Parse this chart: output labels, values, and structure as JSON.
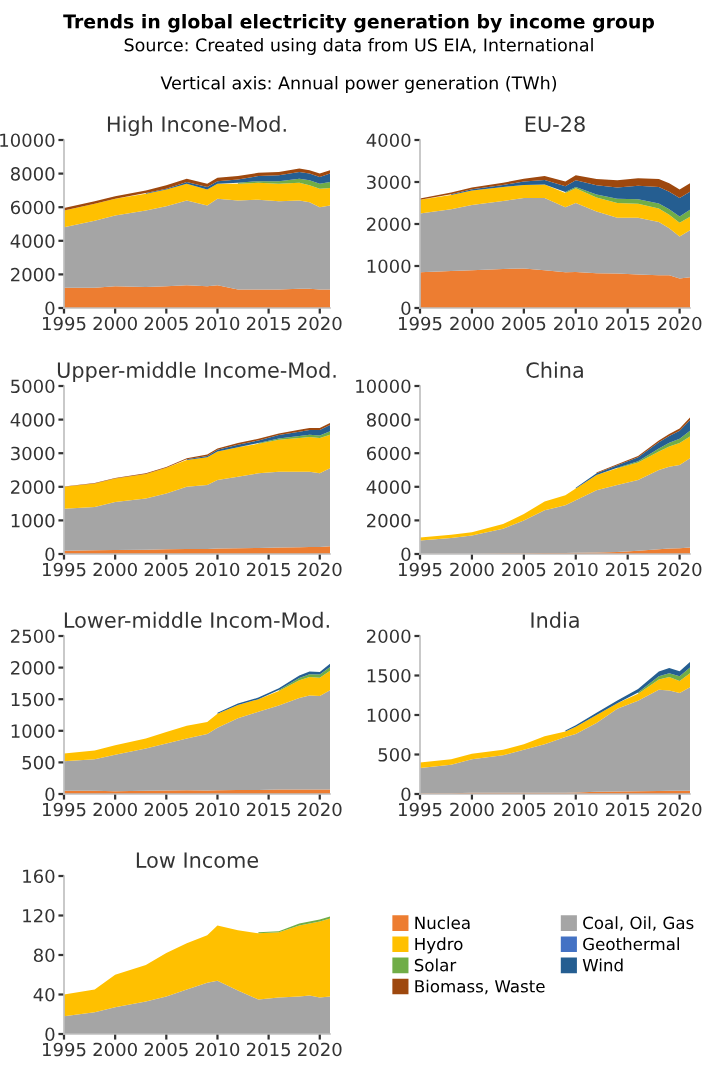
{
  "chart_data": [
    {
      "type": "area",
      "stacked": true,
      "title": "High Incone-Mod.",
      "annotations": [
        "Trends in global electricity generation by income group",
        "Source: Created using data from US EIA, International",
        "Vertical axis: Annual power generation (TWh)"
      ],
      "x": [
        1995,
        1998,
        2000,
        2003,
        2005,
        2007,
        2009,
        2010,
        2012,
        2014,
        2016,
        2018,
        2019,
        2020,
        2021
      ],
      "xlim": [
        1995,
        2021
      ],
      "xticks": [
        1995,
        2000,
        2005,
        2010,
        2015,
        2020
      ],
      "ylim": [
        0,
        10000
      ],
      "yticks": [
        0,
        2000,
        4000,
        6000,
        8000,
        10000
      ],
      "series": [
        {
          "color": "#ed7d31",
          "values": [
            1200,
            1200,
            1300,
            1250,
            1300,
            1350,
            1300,
            1350,
            1100,
            1100,
            1100,
            1150,
            1150,
            1100,
            1100
          ]
        },
        {
          "color": "#a5a5a5",
          "values": [
            3600,
            4000,
            4200,
            4550,
            4750,
            5050,
            4800,
            5150,
            5300,
            5350,
            5250,
            5250,
            5150,
            4900,
            5000
          ]
        },
        {
          "color": "#ffc000",
          "values": [
            1000,
            1000,
            1000,
            1000,
            1000,
            1000,
            950,
            900,
            1000,
            1000,
            1050,
            1050,
            1000,
            1100,
            1050
          ]
        },
        {
          "color": "#4472c4",
          "values": [
            null,
            null,
            null,
            null,
            null,
            null,
            null,
            null,
            null,
            null,
            null,
            null,
            null,
            null,
            null
          ]
        },
        {
          "color": "#70ad47",
          "values": [
            null,
            null,
            null,
            null,
            null,
            null,
            null,
            null,
            50,
            100,
            150,
            250,
            300,
            300,
            350
          ]
        },
        {
          "color": "#255e91",
          "values": [
            null,
            null,
            null,
            50,
            50,
            100,
            150,
            150,
            200,
            300,
            350,
            400,
            400,
            400,
            500
          ]
        },
        {
          "color": "#9e480e",
          "values": [
            150,
            150,
            150,
            150,
            200,
            200,
            200,
            200,
            200,
            200,
            200,
            200,
            200,
            200,
            200
          ]
        }
      ]
    },
    {
      "type": "area",
      "stacked": true,
      "title": "EU-28",
      "x": [
        1995,
        1998,
        2000,
        2003,
        2005,
        2007,
        2009,
        2010,
        2012,
        2014,
        2016,
        2018,
        2019,
        2020,
        2021
      ],
      "xlim": [
        1995,
        2021
      ],
      "xticks": [
        1995,
        2000,
        2005,
        2010,
        2015,
        2020
      ],
      "ylim": [
        0,
        4000
      ],
      "yticks": [
        0,
        1000,
        2000,
        3000,
        4000
      ],
      "series": [
        {
          "color": "#ed7d31",
          "values": [
            850,
            880,
            900,
            930,
            940,
            900,
            850,
            860,
            830,
            820,
            800,
            780,
            780,
            700,
            730
          ]
        },
        {
          "color": "#a5a5a5",
          "values": [
            1400,
            1470,
            1550,
            1620,
            1680,
            1720,
            1550,
            1640,
            1470,
            1330,
            1350,
            1270,
            1120,
            1000,
            1120
          ]
        },
        {
          "color": "#ffc000",
          "values": [
            330,
            340,
            350,
            330,
            310,
            320,
            340,
            350,
            330,
            350,
            330,
            320,
            320,
            330,
            320
          ]
        },
        {
          "color": "#4472c4",
          "values": [
            null,
            null,
            null,
            null,
            null,
            null,
            null,
            null,
            null,
            null,
            null,
            null,
            null,
            null,
            null
          ]
        },
        {
          "color": "#70ad47",
          "values": [
            null,
            null,
            null,
            null,
            null,
            null,
            20,
            30,
            70,
            100,
            110,
            120,
            130,
            150,
            170
          ]
        },
        {
          "color": "#255e91",
          "values": [
            null,
            20,
            30,
            50,
            80,
            110,
            140,
            160,
            220,
            270,
            320,
            390,
            420,
            440,
            430
          ]
        },
        {
          "color": "#9e480e",
          "values": [
            30,
            40,
            40,
            50,
            70,
            90,
            110,
            120,
            150,
            170,
            180,
            190,
            200,
            200,
            200
          ]
        }
      ]
    },
    {
      "type": "area",
      "stacked": true,
      "title": "Upper-middle Income-Mod.",
      "x": [
        1995,
        1998,
        2000,
        2003,
        2005,
        2007,
        2009,
        2010,
        2012,
        2014,
        2016,
        2018,
        2019,
        2020,
        2021
      ],
      "xlim": [
        1995,
        2021
      ],
      "xticks": [
        1995,
        2000,
        2005,
        2010,
        2015,
        2020
      ],
      "ylim": [
        0,
        5000
      ],
      "yticks": [
        0,
        1000,
        2000,
        3000,
        4000,
        5000
      ],
      "series": [
        {
          "color": "#ed7d31",
          "values": [
            100,
            110,
            120,
            130,
            140,
            150,
            150,
            160,
            170,
            180,
            190,
            200,
            210,
            210,
            230
          ]
        },
        {
          "color": "#a5a5a5",
          "values": [
            1250,
            1290,
            1430,
            1520,
            1660,
            1850,
            1900,
            2040,
            2130,
            2220,
            2260,
            2250,
            2240,
            2190,
            2320
          ]
        },
        {
          "color": "#ffc000",
          "values": [
            650,
            700,
            700,
            730,
            770,
            800,
            830,
            850,
            880,
            880,
            950,
            1000,
            1030,
            1050,
            1000
          ]
        },
        {
          "color": "#4472c4",
          "values": [
            null,
            null,
            null,
            null,
            null,
            null,
            null,
            null,
            null,
            null,
            null,
            null,
            null,
            null,
            null
          ]
        },
        {
          "color": "#70ad47",
          "values": [
            null,
            null,
            null,
            null,
            null,
            null,
            null,
            null,
            null,
            20,
            40,
            60,
            70,
            80,
            100
          ]
        },
        {
          "color": "#255e91",
          "values": [
            null,
            null,
            null,
            null,
            null,
            20,
            40,
            50,
            70,
            80,
            100,
            130,
            140,
            160,
            190
          ]
        },
        {
          "color": "#9e480e",
          "values": [
            10,
            10,
            15,
            20,
            20,
            30,
            40,
            40,
            50,
            50,
            50,
            60,
            60,
            60,
            60
          ]
        }
      ]
    },
    {
      "type": "area",
      "stacked": true,
      "title": "China",
      "x": [
        1995,
        1998,
        2000,
        2003,
        2005,
        2007,
        2009,
        2010,
        2012,
        2014,
        2016,
        2018,
        2019,
        2020,
        2021
      ],
      "xlim": [
        1995,
        2021
      ],
      "xticks": [
        1995,
        2000,
        2005,
        2010,
        2015,
        2020
      ],
      "ylim": [
        0,
        10000
      ],
      "yticks": [
        0,
        2000,
        4000,
        6000,
        8000,
        10000
      ],
      "series": [
        {
          "color": "#ed7d31",
          "values": [
            10,
            15,
            15,
            40,
            50,
            60,
            65,
            70,
            90,
            120,
            200,
            280,
            330,
            340,
            380
          ]
        },
        {
          "color": "#a5a5a5",
          "values": [
            790,
            935,
            1085,
            1460,
            1950,
            2540,
            2835,
            3130,
            3710,
            3980,
            4200,
            4720,
            4870,
            4960,
            5320
          ]
        },
        {
          "color": "#ffc000",
          "values": [
            180,
            200,
            200,
            280,
            380,
            530,
            600,
            700,
            900,
            1000,
            1050,
            1100,
            1200,
            1300,
            1300
          ]
        },
        {
          "color": "#4472c4",
          "values": [
            null,
            null,
            null,
            null,
            null,
            null,
            null,
            null,
            null,
            null,
            null,
            null,
            null,
            null,
            null
          ]
        },
        {
          "color": "#70ad47",
          "values": [
            null,
            null,
            null,
            null,
            null,
            null,
            null,
            null,
            null,
            30,
            70,
            180,
            220,
            260,
            330
          ]
        },
        {
          "color": "#255e91",
          "values": [
            null,
            null,
            null,
            null,
            null,
            null,
            null,
            50,
            100,
            150,
            240,
            370,
            400,
            470,
            650
          ]
        },
        {
          "color": "#9e480e",
          "values": [
            null,
            null,
            null,
            null,
            null,
            null,
            null,
            null,
            50,
            60,
            80,
            110,
            120,
            140,
            150
          ]
        }
      ]
    },
    {
      "type": "area",
      "stacked": true,
      "title": "Lower-middle Incom-Mod.",
      "x": [
        1995,
        1998,
        2000,
        2003,
        2005,
        2007,
        2009,
        2010,
        2012,
        2014,
        2016,
        2018,
        2019,
        2020,
        2021
      ],
      "xlim": [
        1995,
        2021
      ],
      "xticks": [
        1995,
        2000,
        2005,
        2010,
        2015,
        2020
      ],
      "ylim": [
        0,
        2500
      ],
      "yticks": [
        0,
        500,
        1000,
        1500,
        2000,
        2500
      ],
      "series": [
        {
          "color": "#ed7d31",
          "values": [
            50,
            50,
            45,
            50,
            55,
            60,
            55,
            60,
            65,
            65,
            70,
            70,
            70,
            70,
            70
          ]
        },
        {
          "color": "#a5a5a5",
          "values": [
            470,
            500,
            575,
            670,
            745,
            820,
            895,
            990,
            1135,
            1235,
            1330,
            1450,
            1490,
            1480,
            1570
          ]
        },
        {
          "color": "#ffc000",
          "values": [
            120,
            140,
            150,
            160,
            180,
            200,
            190,
            220,
            210,
            200,
            230,
            280,
            290,
            290,
            310
          ]
        },
        {
          "color": "#4472c4",
          "values": [
            null,
            null,
            null,
            null,
            null,
            null,
            null,
            null,
            null,
            null,
            null,
            null,
            null,
            null,
            null
          ]
        },
        {
          "color": "#70ad47",
          "values": [
            null,
            null,
            null,
            null,
            null,
            null,
            null,
            null,
            null,
            null,
            15,
            35,
            45,
            50,
            60
          ]
        },
        {
          "color": "#255e91",
          "values": [
            null,
            null,
            null,
            null,
            null,
            null,
            null,
            15,
            20,
            25,
            30,
            40,
            45,
            40,
            50
          ]
        },
        {
          "color": "#9e480e",
          "values": [
            null,
            null,
            null,
            null,
            null,
            null,
            null,
            null,
            null,
            null,
            null,
            null,
            null,
            null,
            null
          ]
        }
      ]
    },
    {
      "type": "area",
      "stacked": true,
      "title": "India",
      "x": [
        1995,
        1998,
        2000,
        2003,
        2005,
        2007,
        2009,
        2010,
        2012,
        2014,
        2016,
        2018,
        2019,
        2020,
        2021
      ],
      "xlim": [
        1995,
        2021
      ],
      "xticks": [
        1995,
        2000,
        2005,
        2010,
        2015,
        2020
      ],
      "ylim": [
        0,
        2000
      ],
      "yticks": [
        0,
        500,
        1000,
        1500,
        2000
      ],
      "series": [
        {
          "color": "#ed7d31",
          "values": [
            8,
            10,
            15,
            15,
            17,
            17,
            15,
            20,
            30,
            33,
            35,
            37,
            40,
            40,
            40
          ]
        },
        {
          "color": "#a5a5a5",
          "values": [
            322,
            360,
            425,
            475,
            543,
            613,
            705,
            740,
            870,
            1047,
            1145,
            1283,
            1270,
            1240,
            1310
          ]
        },
        {
          "color": "#ffc000",
          "values": [
            70,
            70,
            70,
            70,
            70,
            100,
            70,
            90,
            100,
            70,
            90,
            130,
            170,
            150,
            180
          ]
        },
        {
          "color": "#4472c4",
          "values": [
            null,
            null,
            null,
            null,
            null,
            null,
            null,
            null,
            null,
            null,
            null,
            null,
            null,
            null,
            null
          ]
        },
        {
          "color": "#70ad47",
          "values": [
            null,
            null,
            null,
            null,
            null,
            null,
            null,
            null,
            null,
            null,
            15,
            40,
            50,
            60,
            70
          ]
        },
        {
          "color": "#255e91",
          "values": [
            null,
            null,
            null,
            null,
            null,
            null,
            15,
            20,
            30,
            35,
            45,
            60,
            65,
            65,
            70
          ]
        },
        {
          "color": "#9e480e",
          "values": [
            null,
            null,
            null,
            null,
            null,
            null,
            null,
            null,
            null,
            null,
            null,
            null,
            null,
            null,
            null
          ]
        }
      ]
    },
    {
      "type": "area",
      "stacked": true,
      "title": "Low Income",
      "legend": "right",
      "x": [
        1995,
        1998,
        2000,
        2003,
        2005,
        2007,
        2009,
        2010,
        2012,
        2014,
        2016,
        2018,
        2019,
        2020,
        2021
      ],
      "xlim": [
        1995,
        2021
      ],
      "xticks": [
        1995,
        2000,
        2005,
        2010,
        2015,
        2020
      ],
      "ylim": [
        0,
        160
      ],
      "yticks": [
        0,
        40,
        80,
        120,
        160
      ],
      "series": [
        {
          "name": "Nuclea",
          "color": "#ed7d31",
          "values": [
            null,
            null,
            null,
            null,
            null,
            null,
            null,
            null,
            null,
            null,
            null,
            null,
            null,
            null,
            null
          ]
        },
        {
          "name": "Coal, Oil, Gas",
          "color": "#a5a5a5",
          "values": [
            18,
            22,
            27,
            33,
            38,
            45,
            52,
            54,
            44,
            35,
            37,
            38,
            39,
            37,
            38
          ]
        },
        {
          "name": "Hydro",
          "color": "#ffc000",
          "values": [
            22,
            23,
            33,
            37,
            44,
            47,
            48,
            56,
            61,
            67,
            66,
            72,
            73,
            77,
            79
          ]
        },
        {
          "name": "Geothermal",
          "color": "#4472c4",
          "values": [
            null,
            null,
            null,
            null,
            null,
            null,
            null,
            null,
            null,
            null,
            null,
            null,
            null,
            null,
            null
          ]
        },
        {
          "name": "Solar",
          "color": "#70ad47",
          "values": [
            null,
            null,
            null,
            null,
            null,
            null,
            null,
            null,
            null,
            1,
            1,
            2,
            2,
            2,
            2
          ]
        },
        {
          "name": "Wind",
          "color": "#255e91",
          "values": [
            null,
            null,
            null,
            null,
            null,
            null,
            null,
            null,
            null,
            null,
            null,
            null,
            null,
            null,
            null
          ]
        },
        {
          "name": "Biomass, Waste",
          "color": "#9e480e",
          "values": [
            null,
            null,
            null,
            null,
            null,
            null,
            null,
            null,
            null,
            null,
            null,
            null,
            null,
            null,
            null
          ]
        }
      ]
    }
  ]
}
